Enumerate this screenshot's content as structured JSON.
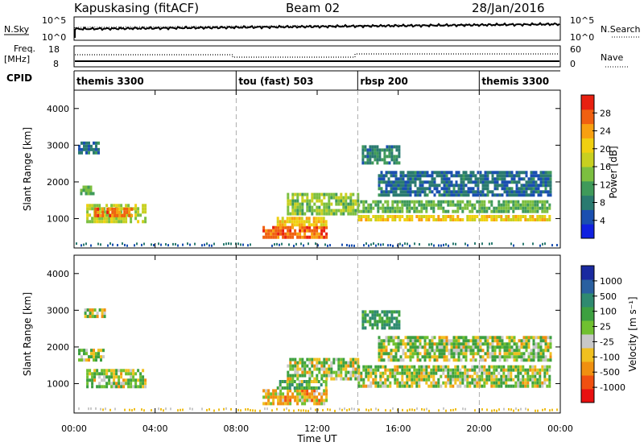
{
  "header": {
    "station": "Kapuskasing (fitACF)",
    "beam": "Beam 02",
    "date": "28/Jan/2016"
  },
  "top_strip": {
    "left_label": "N.Sky",
    "right_label": "N.Search",
    "left_ticks": [
      "10^5",
      "10^0"
    ],
    "right_ticks": [
      "10^5",
      "10^0"
    ]
  },
  "freq_strip": {
    "left_label_1": "Freq.",
    "left_label_2": "[MHz]",
    "right_label": "Nave",
    "left_ticks": [
      "18",
      "8"
    ],
    "right_ticks": [
      "60",
      "0"
    ]
  },
  "cpid": {
    "label": "CPID",
    "segments": [
      {
        "label": "themis 3300",
        "start_hour": 0
      },
      {
        "label": "tou (fast) 503",
        "start_hour": 8
      },
      {
        "label": "rbsp 200",
        "start_hour": 14
      },
      {
        "label": "themis 3300",
        "start_hour": 20
      }
    ]
  },
  "axes": {
    "ylabel": "Slant Range [km]",
    "xlabel": "Time UT",
    "x_ticks": [
      "00:00",
      "04:00",
      "08:00",
      "12:00",
      "16:00",
      "20:00",
      "00:00"
    ],
    "y_ticks": [
      "1000",
      "2000",
      "3000",
      "4000"
    ],
    "vertical_markers_hours": [
      8,
      14,
      20
    ]
  },
  "colorbars": {
    "power": {
      "label": "Power [dB]",
      "ticks": [
        "4",
        "8",
        "12",
        "16",
        "20",
        "24",
        "28"
      ],
      "colors": [
        "#1020e0",
        "#1a4fb0",
        "#2a7a70",
        "#3f9a5a",
        "#7cbf40",
        "#c8d020",
        "#f0d010",
        "#f8a010",
        "#f06010",
        "#e82010"
      ]
    },
    "velocity": {
      "label": "Velocity [m s⁻¹]",
      "ticks": [
        "1000",
        "500",
        "100",
        "25",
        "-25",
        "-100",
        "-500",
        "-1000"
      ],
      "colors": [
        "#1a2aa0",
        "#2a60a0",
        "#2f8a70",
        "#3da040",
        "#70c030",
        "#c8c8c8",
        "#f0c020",
        "#f09010",
        "#f05010",
        "#e81010"
      ]
    }
  },
  "chart_data": [
    {
      "type": "heatmap",
      "title": "Power",
      "xlabel": "Time UT",
      "ylabel": "Slant Range [km]",
      "xlim": [
        0,
        24
      ],
      "ylim": [
        200,
        4500
      ],
      "regions": [
        {
          "t": [
            0.2,
            1.2
          ],
          "r": [
            2800,
            3100
          ],
          "value_db": 6
        },
        {
          "t": [
            0.3,
            1.0
          ],
          "r": [
            1650,
            1900
          ],
          "value_db": 12
        },
        {
          "t": [
            0.6,
            3.5
          ],
          "r": [
            950,
            1400
          ],
          "value_db": 16
        },
        {
          "t": [
            1.0,
            2.8
          ],
          "r": [
            1100,
            1300
          ],
          "value_db": 26
        },
        {
          "t": [
            9.3,
            12.5
          ],
          "r": [
            500,
            800
          ],
          "value_db": 26
        },
        {
          "t": [
            10.0,
            12.5
          ],
          "r": [
            850,
            1050
          ],
          "value_db": 20
        },
        {
          "t": [
            10.5,
            14.0
          ],
          "r": [
            1100,
            1700
          ],
          "value_db": 14
        },
        {
          "t": [
            14.0,
            23.5
          ],
          "r": [
            950,
            1100
          ],
          "value_db": 20
        },
        {
          "t": [
            14.0,
            23.5
          ],
          "r": [
            1200,
            1500
          ],
          "value_db": 12
        },
        {
          "t": [
            15.0,
            23.5
          ],
          "r": [
            1600,
            2300
          ],
          "value_db": 6
        },
        {
          "t": [
            14.2,
            16.0
          ],
          "r": [
            2500,
            3000
          ],
          "value_db": 8
        }
      ]
    },
    {
      "type": "heatmap",
      "title": "Velocity",
      "xlabel": "Time UT",
      "ylabel": "Slant Range [km]",
      "xlim": [
        0,
        24
      ],
      "ylim": [
        200,
        4500
      ],
      "regions": [
        {
          "t": [
            0.2,
            1.5
          ],
          "r": [
            1600,
            1950
          ],
          "value_ms": 0
        },
        {
          "t": [
            0.6,
            3.5
          ],
          "r": [
            950,
            1400
          ],
          "value_ms": 0
        },
        {
          "t": [
            0.5,
            1.5
          ],
          "r": [
            2850,
            3050
          ],
          "value_ms": 0
        },
        {
          "t": [
            9.3,
            12.5
          ],
          "r": [
            450,
            850
          ],
          "value_ms": -150
        },
        {
          "t": [
            10.0,
            12.5
          ],
          "r": [
            850,
            1100
          ],
          "value_ms": 80
        },
        {
          "t": [
            10.5,
            14.0
          ],
          "r": [
            1100,
            1700
          ],
          "value_ms": 0
        },
        {
          "t": [
            14.0,
            23.5
          ],
          "r": [
            950,
            1500
          ],
          "value_ms": 0
        },
        {
          "t": [
            15.0,
            23.5
          ],
          "r": [
            1600,
            2300
          ],
          "value_ms": 0
        },
        {
          "t": [
            14.2,
            16.0
          ],
          "r": [
            2500,
            3000
          ],
          "value_ms": 200
        }
      ]
    }
  ]
}
